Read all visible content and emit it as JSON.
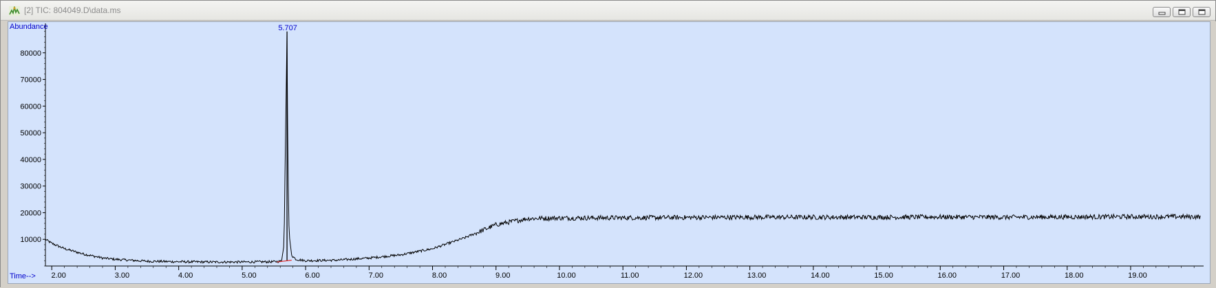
{
  "window": {
    "title": "[2] TIC: 804049.D\\data.ms",
    "icon": "chromatogram-app-icon",
    "buttons": [
      "minimize-icon",
      "restore-icon",
      "close-icon"
    ]
  },
  "colors": {
    "plot_bg": "#d4e3fc",
    "trace": "#000000",
    "axis_label": "#0000cc",
    "baseline_marker": "#e03030"
  },
  "chart_data": {
    "type": "line",
    "title": "",
    "xlabel": "Time-->",
    "ylabel": "Abundance",
    "xlim": [
      1.9,
      20.15
    ],
    "ylim": [
      0,
      90000
    ],
    "x_ticks": [
      "2.00",
      "3.00",
      "4.00",
      "5.00",
      "6.00",
      "7.00",
      "8.00",
      "9.00",
      "10.00",
      "11.00",
      "12.00",
      "13.00",
      "14.00",
      "15.00",
      "16.00",
      "17.00",
      "18.00",
      "19.00"
    ],
    "y_ticks": [
      "10000",
      "20000",
      "30000",
      "40000",
      "50000",
      "60000",
      "70000",
      "80000"
    ],
    "peak_label": "5.707",
    "series": [
      {
        "x": [
          1.9,
          2.0,
          2.2,
          2.5,
          2.8,
          3.0,
          3.5,
          4.0,
          4.5,
          5.0,
          5.5,
          5.62,
          5.66,
          5.69,
          5.707,
          5.72,
          5.74,
          5.78,
          5.85,
          6.0,
          6.5,
          7.0,
          7.5,
          8.0,
          8.5,
          9.0,
          9.5,
          10.0,
          11.0,
          12.0,
          13.0,
          14.0,
          15.0,
          16.0,
          17.0,
          18.0,
          19.0,
          20.1
        ],
        "y": [
          10000,
          8500,
          6500,
          4500,
          3000,
          2500,
          1800,
          1600,
          1500,
          1500,
          1600,
          1800,
          8000,
          60000,
          88000,
          40000,
          12000,
          4000,
          2500,
          2000,
          2200,
          3000,
          4200,
          6500,
          10500,
          15500,
          17800,
          18000,
          18100,
          18200,
          18300,
          18300,
          18300,
          18400,
          18300,
          18400,
          18500,
          18500
        ]
      }
    ]
  }
}
